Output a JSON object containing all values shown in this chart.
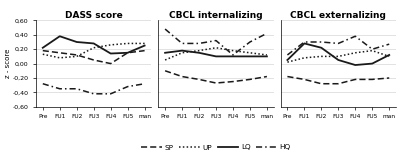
{
  "x_labels": [
    "Pre",
    "FU1",
    "FU2",
    "FU3",
    "FU4",
    "FU5",
    "man"
  ],
  "panels": [
    {
      "title": "DASS score",
      "SP": [
        0.18,
        0.15,
        0.12,
        0.05,
        0.0,
        0.15,
        0.18
      ],
      "UP": [
        0.13,
        0.08,
        0.1,
        0.22,
        0.26,
        0.28,
        0.28
      ],
      "LQ": [
        0.22,
        0.38,
        0.3,
        0.28,
        0.14,
        0.15,
        0.25
      ],
      "HQ": [
        -0.28,
        -0.35,
        -0.35,
        -0.42,
        -0.42,
        -0.32,
        -0.28
      ]
    },
    {
      "title": "CBCL internalizing",
      "SP": [
        -0.1,
        -0.18,
        -0.22,
        -0.27,
        -0.25,
        -0.22,
        -0.18
      ],
      "UP": [
        0.05,
        0.15,
        0.18,
        0.22,
        0.18,
        0.15,
        0.12
      ],
      "LQ": [
        0.15,
        0.18,
        0.15,
        0.1,
        0.1,
        0.1,
        0.1
      ],
      "HQ": [
        0.48,
        0.28,
        0.28,
        0.32,
        0.12,
        0.3,
        0.42
      ]
    },
    {
      "title": "CBCL externalizing",
      "SP": [
        -0.18,
        -0.22,
        -0.28,
        -0.28,
        -0.22,
        -0.22,
        -0.2
      ],
      "UP": [
        0.02,
        0.08,
        0.1,
        0.1,
        0.15,
        0.18,
        0.1
      ],
      "LQ": [
        0.05,
        0.28,
        0.22,
        0.05,
        -0.02,
        0.0,
        0.12
      ],
      "HQ": [
        0.12,
        0.3,
        0.3,
        0.28,
        0.38,
        0.2,
        0.27
      ]
    }
  ],
  "ylim": [
    -0.6,
    0.6
  ],
  "yticks": [
    -0.6,
    -0.4,
    -0.2,
    0.0,
    0.2,
    0.4,
    0.6
  ],
  "ylabel": "z - score",
  "background_color": "#ffffff",
  "line_color": "#1a1a1a",
  "legend_labels": [
    "SP",
    "UP",
    "LQ",
    "HQ"
  ]
}
